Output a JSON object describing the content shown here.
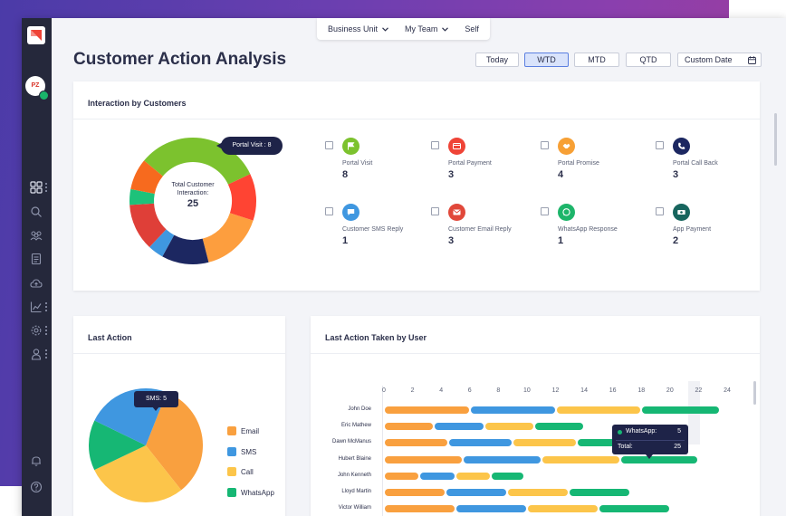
{
  "filters": {
    "business_unit": "Business Unit",
    "my_team": "My Team",
    "self": "Self"
  },
  "page_title": "Customer Action Analysis",
  "avatar_initials": "PZ",
  "periods": [
    {
      "label": "Today",
      "active": false
    },
    {
      "label": "WTD",
      "active": true
    },
    {
      "label": "MTD",
      "active": false
    },
    {
      "label": "QTD",
      "active": false
    }
  ],
  "custom_date": "Custom Date",
  "interaction_card": {
    "title": "Interaction by Customers",
    "center_label_1": "Total Customer",
    "center_label_2": "Interaction:",
    "center_value": "25",
    "tooltip": "Portal Visit : 8",
    "metrics": [
      {
        "label": "Portal Visit",
        "value": "8",
        "color": "#7cc22e",
        "icon": "flag-icon"
      },
      {
        "label": "Portal Payment",
        "value": "3",
        "color": "#ef4437",
        "icon": "payment-icon"
      },
      {
        "label": "Portal Promise",
        "value": "4",
        "color": "#f7a035",
        "icon": "handshake-icon"
      },
      {
        "label": "Portal Call Back",
        "value": "3",
        "color": "#1c2761",
        "icon": "phone-icon"
      },
      {
        "label": "Customer SMS Reply",
        "value": "1",
        "color": "#3f97e0",
        "icon": "chat-icon"
      },
      {
        "label": "Customer Email Reply",
        "value": "3",
        "color": "#e1483a",
        "icon": "mail-icon"
      },
      {
        "label": "WhatsApp Response",
        "value": "1",
        "color": "#1db56a",
        "icon": "whatsapp-icon"
      },
      {
        "label": "App Payment",
        "value": "2",
        "color": "#17655e",
        "icon": "money-icon"
      }
    ]
  },
  "last_action_card": {
    "title": "Last Action",
    "tooltip": "SMS: 5",
    "legend": [
      {
        "label": "Email",
        "color": "#f9a03f"
      },
      {
        "label": "SMS",
        "color": "#3f97e0"
      },
      {
        "label": "Call",
        "color": "#fcc54a"
      },
      {
        "label": "WhatsApp",
        "color": "#16b774"
      }
    ]
  },
  "user_card": {
    "title": "Last Action Taken by User",
    "tooltip": {
      "whatsapp_label": "WhatsApp:",
      "whatsapp_value": "5",
      "total_label": "Total:",
      "total_value": "25"
    }
  },
  "chart_data": [
    {
      "type": "pie",
      "title": "Interaction by Customers",
      "labels": [
        "Portal Visit",
        "Portal Payment",
        "Portal Promise",
        "Portal Call Back",
        "Customer SMS Reply",
        "Customer Email Reply",
        "WhatsApp Response",
        "App Payment"
      ],
      "values": [
        8,
        3,
        4,
        3,
        1,
        3,
        1,
        2
      ],
      "colors": [
        "#7cc22e",
        "#ff4433",
        "#fd9e3e",
        "#1c2761",
        "#3f97e0",
        "#df3f38",
        "#1dc27a",
        "#f76a1e"
      ],
      "donut": true
    },
    {
      "type": "pie",
      "title": "Last Action",
      "labels": [
        "Email",
        "SMS",
        "Call",
        "WhatsApp"
      ],
      "values": [
        7,
        5,
        6,
        3
      ],
      "colors": [
        "#f9a03f",
        "#3f97e0",
        "#fcc54a",
        "#16b774"
      ]
    },
    {
      "type": "bar",
      "orientation": "horizontal",
      "stacked": true,
      "title": "Last Action Taken by User",
      "categories": [
        "John Doe",
        "Eric Mathew",
        "Dawn McManus",
        "Hubert Blaine",
        "John Kenneth",
        "Lloyd Martin",
        "Victor William"
      ],
      "series": [
        {
          "name": "Email",
          "color": "#f9a03f",
          "values": [
            6,
            3.5,
            4.5,
            5.5,
            2.5,
            4.3,
            5
          ]
        },
        {
          "name": "SMS",
          "color": "#3f97e0",
          "values": [
            6,
            3.5,
            4.5,
            5.5,
            2.5,
            4.3,
            5
          ]
        },
        {
          "name": "Call",
          "color": "#fcc54a",
          "values": [
            6,
            3.5,
            4.5,
            5.5,
            2.5,
            4.3,
            5
          ]
        },
        {
          "name": "WhatsApp",
          "color": "#16b774",
          "values": [
            5.5,
            3.5,
            4.5,
            5.5,
            2.3,
            4.3,
            5
          ]
        }
      ],
      "xlim": [
        0,
        24
      ],
      "xticks": [
        0,
        2,
        4,
        6,
        8,
        10,
        12,
        14,
        16,
        18,
        20,
        22,
        24
      ]
    }
  ]
}
